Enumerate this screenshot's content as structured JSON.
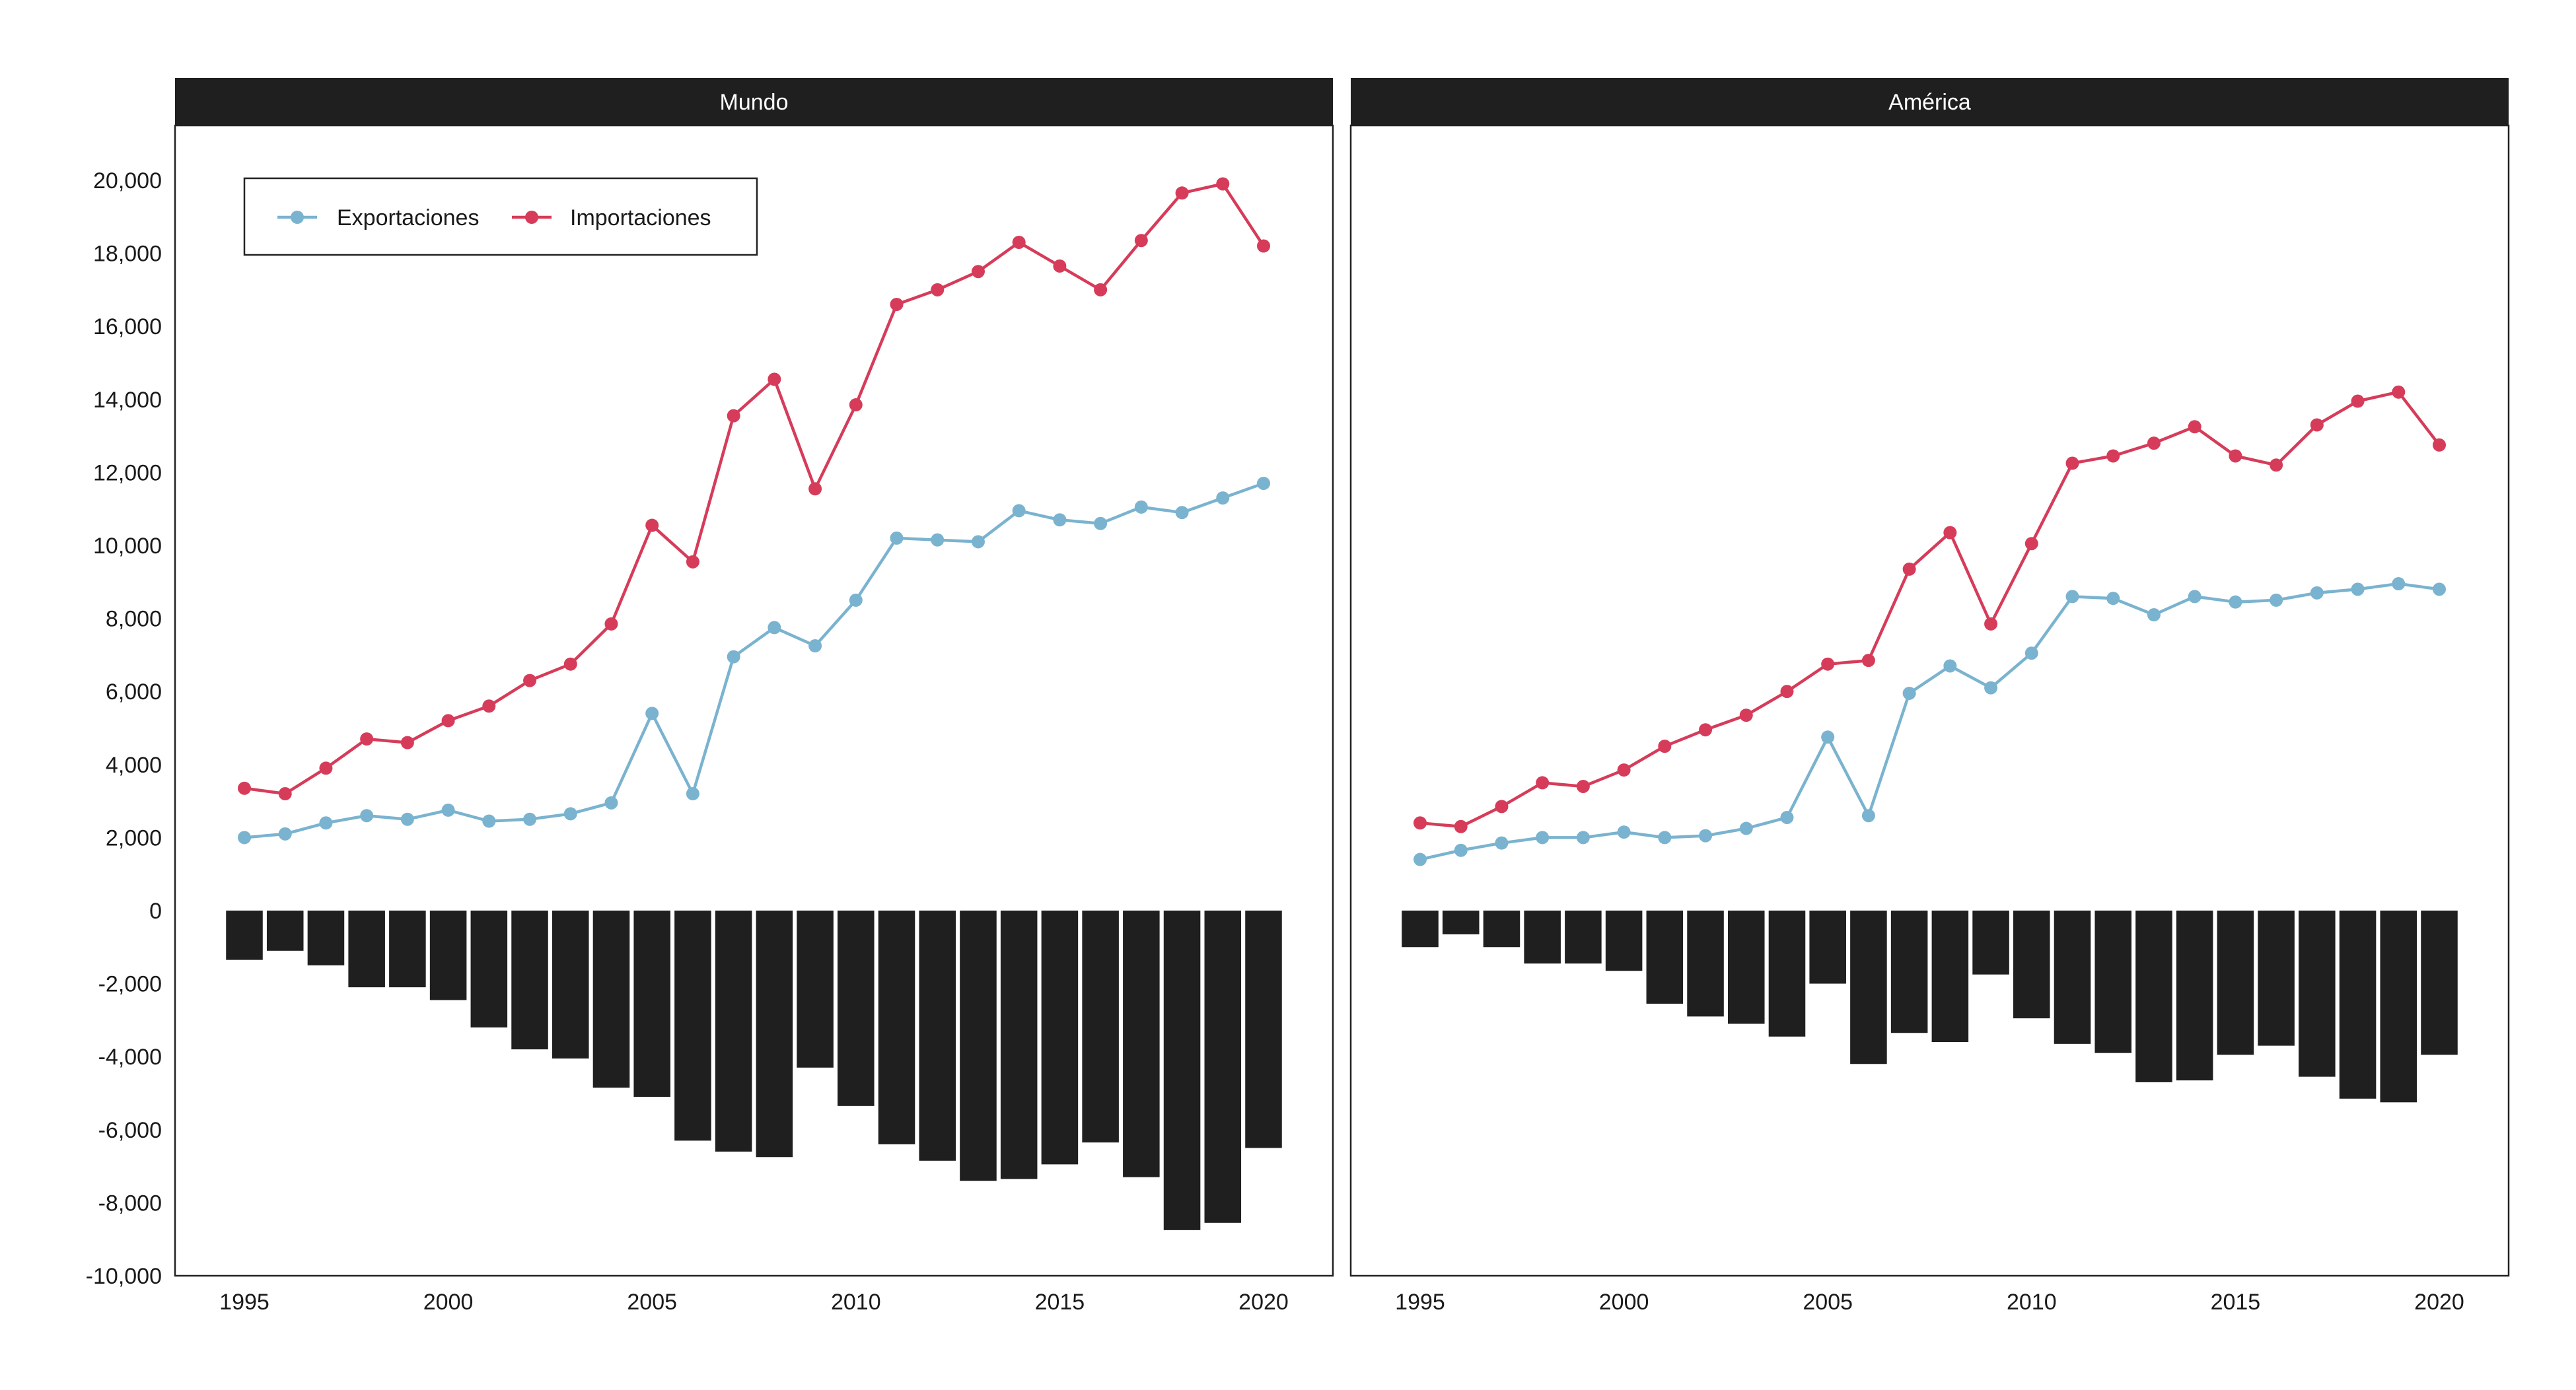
{
  "colors": {
    "exports": "#7ab3cf",
    "imports": "#d63c5a",
    "balance": "#1f1f1f",
    "strip_bg": "#1f1f1f",
    "strip_text": "#ffffff",
    "axis_text": "#1a1a1a"
  },
  "legend": {
    "exports_label": "Exportaciones",
    "imports_label": "Importaciones",
    "placement": "top-left"
  },
  "chart_data": {
    "type": "line+bar",
    "title": "",
    "xlabel": "",
    "ylabel": "",
    "grid": false,
    "ylim": [
      -10000,
      21500
    ],
    "y_ticks": [
      20000,
      18000,
      16000,
      14000,
      12000,
      10000,
      8000,
      6000,
      4000,
      2000,
      0,
      -2000,
      -4000,
      -6000,
      -8000,
      -10000
    ],
    "y_tick_labels": [
      "20,000",
      "18,000",
      "16,000",
      "14,000",
      "12,000",
      "10,000",
      "8,000",
      "6,000",
      "4,000",
      "2,000",
      "0",
      "-2,000",
      "-4,000",
      "-6,000",
      "-8,000",
      "-10,000"
    ],
    "x_ticks": [
      1995,
      2000,
      2005,
      2010,
      2015,
      2020
    ],
    "x_tick_labels": [
      "1995",
      "2000",
      "2005",
      "2010",
      "2015",
      "2020"
    ],
    "years": [
      1995,
      1996,
      1997,
      1998,
      1999,
      2000,
      2001,
      2002,
      2003,
      2004,
      2005,
      2006,
      2007,
      2008,
      2009,
      2010,
      2011,
      2012,
      2013,
      2014,
      2015,
      2016,
      2017,
      2018,
      2019,
      2020
    ],
    "panels": [
      {
        "name": "Mundo",
        "exports": [
          2000,
          2100,
          2400,
          2600,
          2500,
          2750,
          2450,
          2500,
          2650,
          2950,
          5400,
          3200,
          6950,
          7750,
          7250,
          8500,
          10200,
          10150,
          10100,
          10950,
          10700,
          10600,
          11050,
          10900,
          11300,
          11700
        ],
        "imports": [
          3350,
          3200,
          3900,
          4700,
          4600,
          5200,
          5600,
          6300,
          6750,
          7850,
          10550,
          9550,
          13550,
          14550,
          11550,
          13850,
          16600,
          17000,
          17500,
          18300,
          17650,
          17000,
          18350,
          19650,
          19900,
          18200
        ],
        "balance": [
          -1350,
          -1100,
          -1500,
          -2100,
          -2100,
          -2450,
          -3200,
          -3800,
          -4050,
          -4850,
          -5100,
          -6300,
          -6600,
          -6750,
          -4300,
          -5350,
          -6400,
          -6850,
          -7400,
          -7350,
          -6950,
          -6350,
          -7300,
          -8750,
          -8550,
          -6500
        ]
      },
      {
        "name": "América",
        "exports": [
          1400,
          1650,
          1850,
          2000,
          2000,
          2150,
          2000,
          2050,
          2250,
          2550,
          4750,
          2600,
          5950,
          6700,
          6100,
          7050,
          8600,
          8550,
          8100,
          8600,
          8450,
          8500,
          8700,
          8800,
          8950,
          8800
        ],
        "imports": [
          2400,
          2300,
          2850,
          3500,
          3400,
          3850,
          4500,
          4950,
          5350,
          6000,
          6750,
          6850,
          9350,
          10350,
          7850,
          10050,
          12250,
          12450,
          12800,
          13250,
          12450,
          12200,
          13300,
          13950,
          14200,
          12750
        ],
        "balance": [
          -1000,
          -650,
          -1000,
          -1450,
          -1450,
          -1650,
          -2550,
          -2900,
          -3100,
          -3450,
          -2000,
          -4200,
          -3350,
          -3600,
          -1750,
          -2950,
          -3650,
          -3900,
          -4700,
          -4650,
          -3950,
          -3700,
          -4550,
          -5150,
          -5250,
          -3950
        ]
      }
    ]
  }
}
